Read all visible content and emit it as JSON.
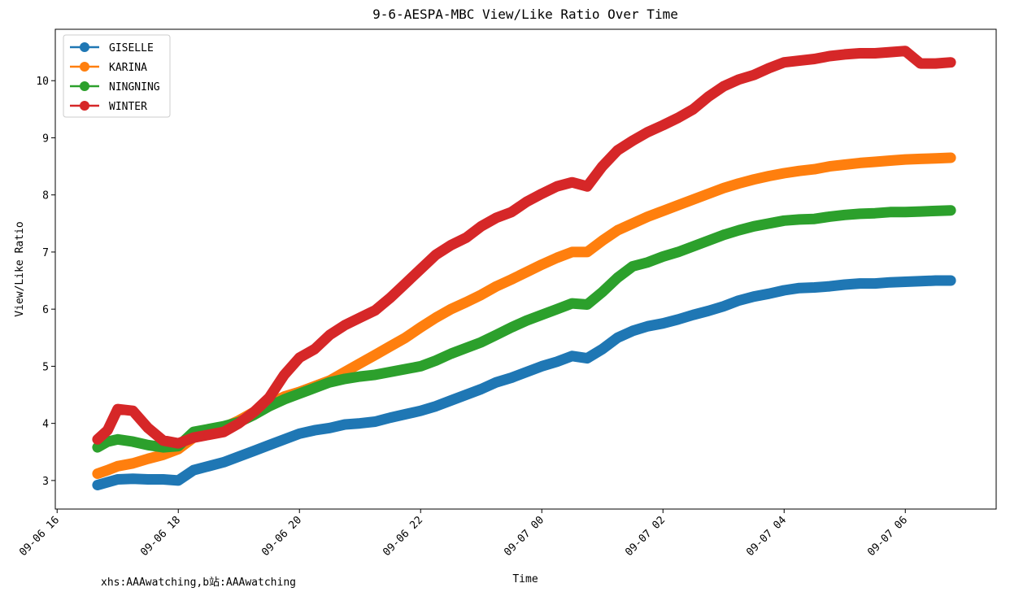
{
  "chart_data": {
    "type": "line",
    "title": "9-6-AESPA-MBC View/Like Ratio Over Time",
    "xlabel": "Time",
    "ylabel": "View/Like Ratio",
    "x_ticks": [
      "09-06 16",
      "09-06 18",
      "09-06 20",
      "09-06 22",
      "09-07 00",
      "09-07 02",
      "09-07 04",
      "09-07 06"
    ],
    "y_ticks": [
      3,
      4,
      5,
      6,
      7,
      8,
      9,
      10
    ],
    "ylim": [
      2.5,
      10.9
    ],
    "grid": false,
    "legend_position": "top-left",
    "footnote": "xhs:AAAwatching,b站:AAAwatching",
    "x_hours": [
      16.667,
      16.833,
      17.0,
      17.25,
      17.5,
      17.75,
      18.0,
      18.25,
      18.5,
      18.75,
      19.0,
      19.25,
      19.5,
      19.75,
      20.0,
      20.25,
      20.5,
      20.75,
      21.0,
      21.25,
      21.5,
      21.75,
      22.0,
      22.25,
      22.5,
      22.75,
      23.0,
      23.25,
      23.5,
      23.75,
      24.0,
      24.25,
      24.5,
      24.75,
      25.0,
      25.25,
      25.5,
      25.75,
      26.0,
      26.25,
      26.5,
      26.75,
      27.0,
      27.25,
      27.5,
      27.75,
      28.0,
      28.25,
      28.5,
      28.75,
      29.0,
      29.25,
      29.5,
      29.75,
      30.0,
      30.25,
      30.5,
      30.75
    ],
    "series": [
      {
        "name": "GISELLE",
        "color": "#1f77b4",
        "values": [
          2.92,
          2.97,
          3.02,
          3.03,
          3.02,
          3.02,
          3.0,
          3.18,
          3.25,
          3.32,
          3.42,
          3.52,
          3.62,
          3.72,
          3.82,
          3.88,
          3.92,
          3.98,
          4.0,
          4.03,
          4.1,
          4.16,
          4.22,
          4.3,
          4.4,
          4.5,
          4.6,
          4.72,
          4.8,
          4.9,
          5.0,
          5.08,
          5.18,
          5.14,
          5.3,
          5.5,
          5.62,
          5.7,
          5.75,
          5.82,
          5.9,
          5.97,
          6.05,
          6.15,
          6.22,
          6.27,
          6.33,
          6.37,
          6.38,
          6.4,
          6.43,
          6.45,
          6.45,
          6.47,
          6.48,
          6.49,
          6.5,
          6.5
        ]
      },
      {
        "name": "KARINA",
        "color": "#ff7f0e",
        "values": [
          3.12,
          3.18,
          3.25,
          3.3,
          3.38,
          3.45,
          3.55,
          3.75,
          3.83,
          3.93,
          4.05,
          4.2,
          4.35,
          4.47,
          4.55,
          4.65,
          4.75,
          4.9,
          5.05,
          5.2,
          5.35,
          5.5,
          5.68,
          5.85,
          6.0,
          6.12,
          6.25,
          6.4,
          6.52,
          6.65,
          6.78,
          6.9,
          7.0,
          7.0,
          7.2,
          7.38,
          7.5,
          7.62,
          7.72,
          7.82,
          7.92,
          8.02,
          8.12,
          8.2,
          8.27,
          8.33,
          8.38,
          8.42,
          8.45,
          8.5,
          8.53,
          8.56,
          8.58,
          8.6,
          8.62,
          8.63,
          8.64,
          8.65
        ]
      },
      {
        "name": "NINGNING",
        "color": "#2ca02c",
        "values": [
          3.58,
          3.68,
          3.72,
          3.68,
          3.62,
          3.58,
          3.6,
          3.85,
          3.9,
          3.95,
          4.02,
          4.15,
          4.3,
          4.42,
          4.52,
          4.62,
          4.72,
          4.78,
          4.82,
          4.85,
          4.9,
          4.95,
          5.0,
          5.1,
          5.22,
          5.32,
          5.42,
          5.55,
          5.68,
          5.8,
          5.9,
          6.0,
          6.1,
          6.08,
          6.3,
          6.55,
          6.75,
          6.82,
          6.92,
          7.0,
          7.1,
          7.2,
          7.3,
          7.38,
          7.45,
          7.5,
          7.55,
          7.57,
          7.58,
          7.62,
          7.65,
          7.67,
          7.68,
          7.7,
          7.7,
          7.71,
          7.72,
          7.73
        ]
      },
      {
        "name": "WINTER",
        "color": "#d62728",
        "values": [
          3.72,
          3.88,
          4.25,
          4.22,
          3.92,
          3.7,
          3.65,
          3.75,
          3.8,
          3.85,
          4.0,
          4.2,
          4.45,
          4.85,
          5.15,
          5.3,
          5.55,
          5.72,
          5.85,
          5.98,
          6.2,
          6.45,
          6.7,
          6.95,
          7.12,
          7.25,
          7.45,
          7.6,
          7.7,
          7.88,
          8.02,
          8.15,
          8.22,
          8.15,
          8.5,
          8.78,
          8.95,
          9.1,
          9.22,
          9.35,
          9.5,
          9.72,
          9.9,
          10.02,
          10.1,
          10.22,
          10.32,
          10.35,
          10.38,
          10.43,
          10.46,
          10.48,
          10.48,
          10.5,
          10.52,
          10.3,
          10.3,
          10.32
        ]
      }
    ]
  }
}
